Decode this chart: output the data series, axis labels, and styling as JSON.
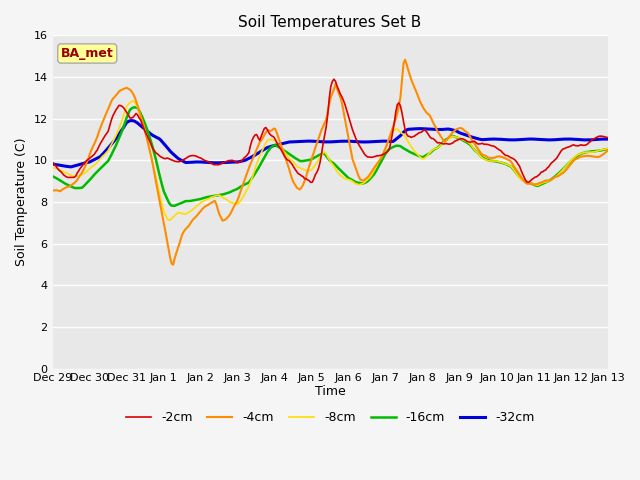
{
  "title": "Soil Temperatures Set B",
  "xlabel": "Time",
  "ylabel": "Soil Temperature (C)",
  "ylim": [
    0,
    16
  ],
  "yticks": [
    0,
    2,
    4,
    6,
    8,
    10,
    12,
    14,
    16
  ],
  "fig_facecolor": "#f5f5f5",
  "ax_facecolor": "#e8e8e8",
  "grid_color": "#ffffff",
  "annotation_text": "BA_met",
  "annotation_box_facecolor": "#ffff99",
  "annotation_box_edgecolor": "#aaaaaa",
  "annotation_text_color": "#990000",
  "series_colors": {
    "-2cm": "#dd0000",
    "-4cm": "#ff8c00",
    "-8cm": "#ffdd00",
    "-16cm": "#00bb00",
    "-32cm": "#0000dd"
  },
  "series_linewidths": {
    "-2cm": 1.2,
    "-4cm": 1.5,
    "-8cm": 1.2,
    "-16cm": 1.8,
    "-32cm": 2.2
  },
  "x_tick_labels": [
    "Dec 29",
    "Dec 30",
    "Dec 31",
    "Jan 1",
    "Jan 2",
    "Jan 3",
    "Jan 4",
    "Jan 5",
    "Jan 6",
    "Jan 7",
    "Jan 8",
    "Jan 9",
    "Jan 10",
    "Jan 11",
    "Jan 12",
    "Jan 13"
  ],
  "figsize": [
    6.4,
    4.8
  ],
  "dpi": 100
}
